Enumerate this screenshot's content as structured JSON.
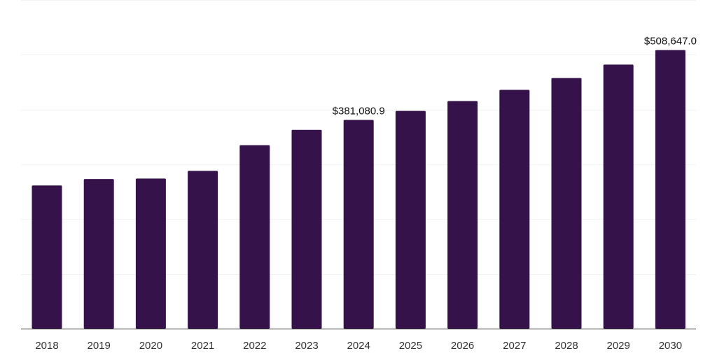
{
  "colors": {
    "bar": "#36124a",
    "background": "#ffffff"
  },
  "chart_data": {
    "type": "bar",
    "categories": [
      "2018",
      "2019",
      "2020",
      "2021",
      "2022",
      "2023",
      "2024",
      "2025",
      "2026",
      "2027",
      "2028",
      "2029",
      "2030"
    ],
    "series": [
      {
        "values": [
          261500,
          273000,
          274000,
          288000,
          335000,
          363000,
          381080.9,
          397500,
          415500,
          436000,
          457500,
          482000,
          508647.0
        ]
      }
    ],
    "data_labels": [
      {
        "category": "2024",
        "text": "$381,080.9"
      },
      {
        "category": "2030",
        "text": "$508,647.0"
      }
    ],
    "ylim": [
      0,
      600000
    ],
    "y_gridlines": [
      0,
      100000,
      200000,
      300000,
      400000,
      500000,
      600000
    ],
    "y_tick_labels_visible": false,
    "grid": true,
    "legend": "none"
  }
}
